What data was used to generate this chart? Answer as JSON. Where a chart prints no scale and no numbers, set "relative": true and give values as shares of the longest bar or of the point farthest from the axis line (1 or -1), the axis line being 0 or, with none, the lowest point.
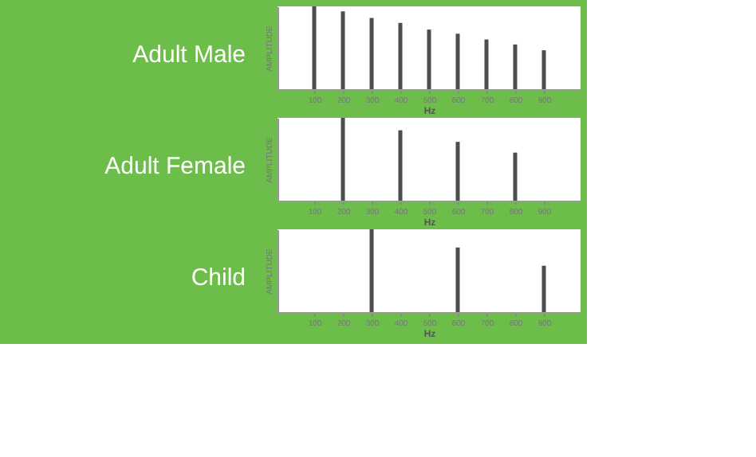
{
  "chart_data": [
    {
      "type": "bar",
      "title": "Adult Male",
      "xlabel": "Hz",
      "ylabel": "AMPLITUDE",
      "relative": true,
      "color": "#4d4d4d",
      "categories": [
        "100",
        "200",
        "300",
        "400",
        "500",
        "600",
        "700",
        "800",
        "900"
      ],
      "values": [
        1,
        0.94,
        0.86,
        0.8,
        0.72,
        0.67,
        0.6,
        0.54,
        0.47
      ]
    },
    {
      "type": "bar",
      "title": "Adult Female",
      "xlabel": "Hz",
      "ylabel": "AMPLITUDE",
      "relative": true,
      "color": "#4d4d4d",
      "categories": [
        "100",
        "200",
        "300",
        "400",
        "500",
        "600",
        "700",
        "800",
        "900"
      ],
      "values": [
        null,
        1,
        null,
        0.85,
        null,
        0.71,
        null,
        0.58,
        null
      ]
    },
    {
      "type": "bar",
      "title": "Child",
      "xlabel": "Hz",
      "ylabel": "AMPLITUDE",
      "relative": true,
      "color": "#4d4d4d",
      "categories": [
        "100",
        "200",
        "300",
        "400",
        "500",
        "600",
        "700",
        "800",
        "900"
      ],
      "values": [
        null,
        null,
        1,
        null,
        null,
        0.78,
        null,
        null,
        0.56
      ]
    }
  ]
}
